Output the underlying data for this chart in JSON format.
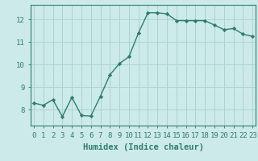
{
  "x": [
    0,
    1,
    2,
    3,
    4,
    5,
    6,
    7,
    8,
    9,
    10,
    11,
    12,
    13,
    14,
    15,
    16,
    17,
    18,
    19,
    20,
    21,
    22,
    23
  ],
  "y": [
    8.3,
    8.2,
    8.45,
    7.7,
    8.55,
    7.75,
    7.72,
    8.6,
    9.55,
    10.05,
    10.35,
    11.4,
    12.3,
    12.3,
    12.25,
    11.95,
    11.95,
    11.95,
    11.95,
    11.75,
    11.55,
    11.6,
    11.35,
    11.25
  ],
  "line_color": "#2e7d6e",
  "marker": "D",
  "markersize": 2.2,
  "linewidth": 1.0,
  "background_color": "#cceae8",
  "grid_color": "#aad4d0",
  "xlabel": "Humidex (Indice chaleur)",
  "xlabel_fontsize": 7.5,
  "tick_fontsize": 6.5,
  "yticks": [
    8,
    9,
    10,
    11,
    12
  ],
  "xticks": [
    0,
    1,
    2,
    3,
    4,
    5,
    6,
    7,
    8,
    9,
    10,
    11,
    12,
    13,
    14,
    15,
    16,
    17,
    18,
    19,
    20,
    21,
    22,
    23
  ],
  "ylim": [
    7.3,
    12.65
  ],
  "xlim": [
    -0.3,
    23.3
  ]
}
